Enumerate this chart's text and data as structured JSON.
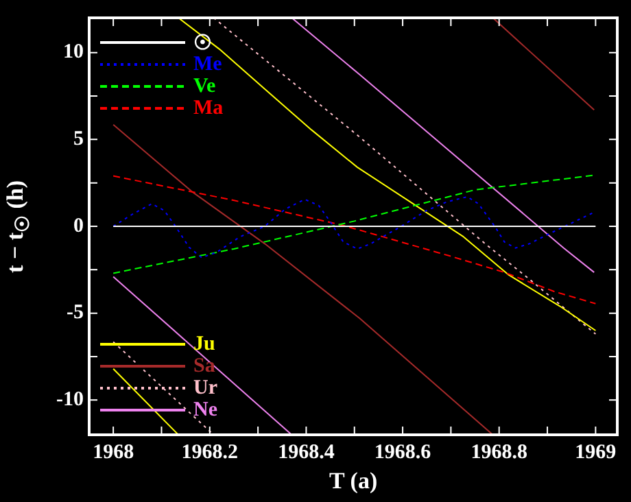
{
  "chart_data": {
    "type": "line",
    "xlabel": "T (a)",
    "ylabel": "t − t$_{☉}$ (h)",
    "xlim": [
      1967.95,
      1969.045
    ],
    "ylim": [
      -12,
      12
    ],
    "xticks": [
      1968,
      {
        "value": 1968.1,
        "label": null
      },
      1968.2,
      {
        "value": 1968.3,
        "label": null
      },
      1968.4,
      {
        "value": 1968.5,
        "label": null
      },
      1968.6,
      {
        "value": 1968.7,
        "label": null
      },
      1968.8,
      {
        "value": 1968.9,
        "label": null
      },
      1969
    ],
    "yticks": [
      -10,
      {
        "value": -7.5,
        "label": null
      },
      -5,
      {
        "value": -2.5,
        "label": null
      },
      0,
      {
        "value": 2.5,
        "label": null
      },
      5,
      {
        "value": 7.5,
        "label": null
      },
      10
    ],
    "legend": "left",
    "series": [
      {
        "name": "☉",
        "color": "#ffffff",
        "line_style": "solid",
        "x": [
          1968,
          1969
        ],
        "values": [
          0,
          0
        ]
      },
      {
        "name": "Me",
        "color": "#0000ff",
        "line_style": "dotted",
        "x": [
          1968,
          1968.04,
          1968.08,
          1968.106,
          1968.129,
          1968.157,
          1968.183,
          1968.214,
          1968.263,
          1968.314,
          1968.357,
          1968.397,
          1968.426,
          1968.449,
          1968.477,
          1968.506,
          1968.534,
          1968.597,
          1968.649,
          1968.691,
          1968.734,
          1968.757,
          1968.791,
          1968.811,
          1968.834,
          1968.863,
          1968.906,
          1969
        ],
        "values": [
          0,
          0.7,
          1.3,
          0.9,
          0,
          -1.2,
          -1.8,
          -1.5,
          -0.6,
          0,
          1,
          1.55,
          1.2,
          0.3,
          -0.9,
          -1.3,
          -1,
          0,
          0.9,
          1.4,
          1.7,
          1.3,
          0,
          -0.9,
          -1.25,
          -1,
          -0.4,
          0.85
        ]
      },
      {
        "name": "Ve",
        "color": "#00ff00",
        "line_style": "dashed",
        "x": [
          1968,
          1968.25,
          1968.5,
          1968.75,
          1969
        ],
        "values": [
          -2.7,
          -1.3,
          0.3,
          2.1,
          2.95
        ]
      },
      {
        "name": "Ma",
        "color": "#ff0000",
        "line_style": "dashed",
        "x": [
          1968,
          1968.249,
          1968.477,
          1968.697,
          1968.811,
          1968.914,
          1969
        ],
        "values": [
          2.9,
          1.5,
          0.05,
          -1.7,
          -2.65,
          -3.75,
          -4.45
        ]
      },
      {
        "name": "Ju",
        "color": "#ffff00",
        "line_style": "solid",
        "x": [
          1968,
          1968.135,
          1968.135,
          1968.22,
          1968.314,
          1968.411,
          1968.506,
          1968.726,
          1968.82,
          1968.926,
          1969
        ],
        "values": [
          -8.2,
          -12,
          12,
          10.2,
          7.9,
          5.55,
          3.4,
          -0.6,
          -2.8,
          -4.6,
          -6
        ]
      },
      {
        "name": "Sa",
        "color": "#a52a2a",
        "line_style": "solid",
        "x": [
          1968,
          1968.163,
          1968.314,
          1968.511,
          1968.787,
          1968.787,
          1968.997
        ],
        "values": [
          5.85,
          2,
          -1,
          -5.3,
          -12,
          12,
          6.7
        ]
      },
      {
        "name": "Ur",
        "color": "#ffc0cb",
        "line_style": "dotted",
        "x": [
          1968,
          1968.208,
          1968.208,
          1968.506,
          1968.771,
          1968.863,
          1969
        ],
        "values": [
          -6.65,
          -12,
          12,
          5.25,
          -1,
          -3.05,
          -6.2
        ]
      },
      {
        "name": "Ne",
        "color": "#ee82ee",
        "line_style": "solid",
        "x": [
          1968,
          1968.37,
          1968.37,
          1968.51,
          1968.934,
          1968.997
        ],
        "values": [
          -2.9,
          -12,
          12,
          8.75,
          -1.25,
          -2.65
        ]
      }
    ]
  }
}
